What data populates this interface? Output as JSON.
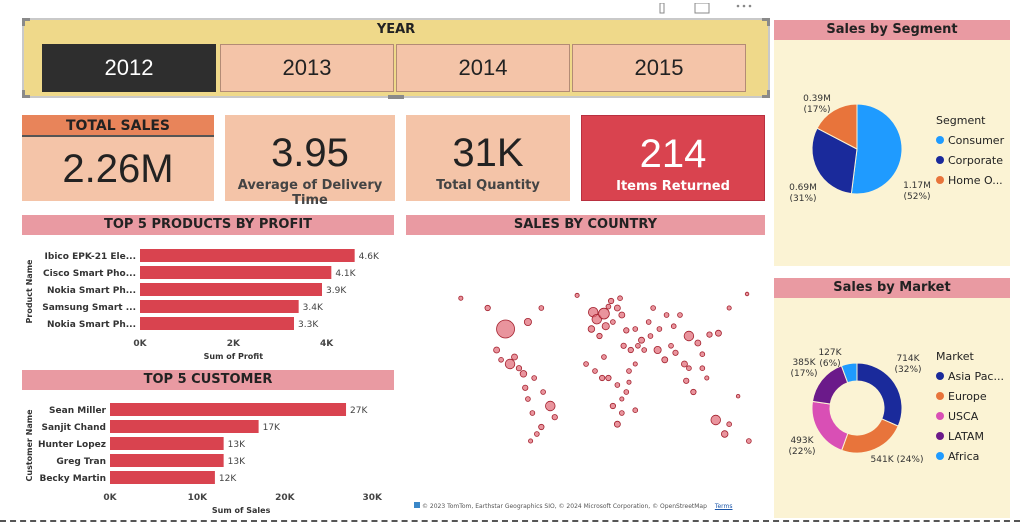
{
  "year_slicer": {
    "title": "YEAR",
    "years": [
      "2012",
      "2013",
      "2014",
      "2015"
    ],
    "selected": "2012"
  },
  "kpis": {
    "total_sales": {
      "title": "TOTAL SALES",
      "value": "2.26M"
    },
    "delivery": {
      "value": "3.95",
      "label": "Average of Delivery Time"
    },
    "quantity": {
      "value": "31K",
      "label": "Total Quantity"
    },
    "returned": {
      "value": "214",
      "label": "Items Returned"
    }
  },
  "sections": {
    "products_title": "TOP 5 PRODUCTS BY PROFIT",
    "customers_title": "TOP 5 CUSTOMER",
    "country_title": "SALES BY COUNTRY",
    "segment_title": "Sales by Segment",
    "market_title": "Sales by Market",
    "map_attribution": "© 2023 TomTom, Earthstar Geographics SIO, © 2024 Microsoft Corporation, © OpenStreetMap",
    "map_terms": "Terms"
  },
  "colors": {
    "bar": "#d9434f",
    "consumer": "#1f9bff",
    "corporate": "#1a2a9b",
    "home_office": "#e8743b",
    "asia_pacific": "#1a2a9b",
    "europe": "#e8743b",
    "usca": "#d94fb5",
    "latam": "#6b1a8a",
    "africa": "#1f9bff"
  },
  "chart_data": [
    {
      "id": "products",
      "type": "bar",
      "orientation": "horizontal",
      "categories": [
        "Ibico EPK-21 Ele...",
        "Cisco Smart Pho...",
        "Nokia Smart Ph...",
        "Samsung Smart ...",
        "Nokia Smart Ph..."
      ],
      "values": [
        4600,
        4100,
        3900,
        3400,
        3300
      ],
      "data_labels": [
        "4.6K",
        "4.1K",
        "3.9K",
        "3.4K",
        "3.3K"
      ],
      "xlabel": "Sum of Profit",
      "ylabel": "Product Name",
      "xlim": [
        0,
        4800
      ],
      "xticks": [
        0,
        2000,
        4000
      ],
      "xtick_labels": [
        "0K",
        "2K",
        "4K"
      ]
    },
    {
      "id": "customers",
      "type": "bar",
      "orientation": "horizontal",
      "categories": [
        "Sean Miller",
        "Sanjit Chand",
        "Hunter Lopez",
        "Greg Tran",
        "Becky Martin"
      ],
      "values": [
        27000,
        17000,
        13000,
        13000,
        12000
      ],
      "data_labels": [
        "27K",
        "17K",
        "13K",
        "13K",
        "12K"
      ],
      "xlabel": "Sum of Sales",
      "ylabel": "Customer Name",
      "xlim": [
        0,
        31000
      ],
      "xticks": [
        0,
        10000,
        20000,
        30000
      ],
      "xtick_labels": [
        "0K",
        "10K",
        "20K",
        "30K"
      ]
    },
    {
      "id": "segment",
      "type": "pie",
      "legend_title": "Segment",
      "categories": [
        "Consumer",
        "Corporate",
        "Home O..."
      ],
      "values": [
        1.17,
        0.69,
        0.39
      ],
      "value_labels": [
        "1.17M",
        "0.69M",
        "0.39M"
      ],
      "percent_labels": [
        "(52%)",
        "(31%)",
        "(17%)"
      ]
    },
    {
      "id": "market",
      "type": "pie",
      "donut": true,
      "legend_title": "Market",
      "categories": [
        "Asia Pac...",
        "Europe",
        "USCA",
        "LATAM",
        "Africa"
      ],
      "values": [
        714,
        541,
        493,
        385,
        127
      ],
      "value_labels": [
        "714K",
        "541K (24%)",
        "493K",
        "385K",
        "127K"
      ],
      "percent_labels": [
        "(32%)",
        "",
        "(22%)",
        "(17%)",
        "(6%)"
      ]
    },
    {
      "id": "country_map",
      "type": "scatter",
      "note_values": "bubble map of sales by country; bubbles = [longitude, latitude, relative size]",
      "points": [
        [
          -100,
          40,
          3
        ],
        [
          -95,
          15,
          1.6
        ],
        [
          -75,
          45,
          1.2
        ],
        [
          -120,
          55,
          0.9
        ],
        [
          -60,
          55,
          0.8
        ],
        [
          -110,
          25,
          1
        ],
        [
          -105,
          18,
          0.8
        ],
        [
          -90,
          20,
          1
        ],
        [
          -85,
          12,
          0.9
        ],
        [
          -80,
          8,
          1.1
        ],
        [
          -78,
          -2,
          0.9
        ],
        [
          -75,
          -10,
          0.8
        ],
        [
          -70,
          -20,
          0.8
        ],
        [
          -60,
          -30,
          0.9
        ],
        [
          -50,
          -15,
          1.6
        ],
        [
          -65,
          -35,
          0.8
        ],
        [
          -72,
          -40,
          0.7
        ],
        [
          -58,
          -5,
          0.8
        ],
        [
          -45,
          -23,
          0.9
        ],
        [
          -68,
          5,
          0.8
        ],
        [
          -2,
          52,
          1.6
        ],
        [
          2,
          47,
          1.6
        ],
        [
          10,
          51,
          1.8
        ],
        [
          12,
          42,
          1.2
        ],
        [
          -4,
          40,
          1.1
        ],
        [
          18,
          60,
          0.9
        ],
        [
          25,
          55,
          1
        ],
        [
          30,
          50,
          1
        ],
        [
          20,
          45,
          0.8
        ],
        [
          15,
          56,
          0.8
        ],
        [
          35,
          39,
          0.9
        ],
        [
          45,
          40,
          0.8
        ],
        [
          40,
          25,
          0.9
        ],
        [
          52,
          32,
          1
        ],
        [
          60,
          45,
          0.8
        ],
        [
          5,
          35,
          0.9
        ],
        [
          10,
          20,
          0.8
        ],
        [
          0,
          10,
          0.8
        ],
        [
          15,
          5,
          0.9
        ],
        [
          25,
          0,
          0.8
        ],
        [
          35,
          -5,
          0.8
        ],
        [
          20,
          -15,
          0.9
        ],
        [
          25,
          -28,
          1
        ],
        [
          30,
          -20,
          0.8
        ],
        [
          45,
          -18,
          0.8
        ],
        [
          -10,
          15,
          0.8
        ],
        [
          8,
          5,
          0.9
        ],
        [
          38,
          10,
          0.8
        ],
        [
          32,
          28,
          0.9
        ],
        [
          48,
          28,
          0.8
        ],
        [
          70,
          25,
          1.2
        ],
        [
          78,
          18,
          1
        ],
        [
          85,
          28,
          0.8
        ],
        [
          90,
          23,
          0.9
        ],
        [
          100,
          15,
          1
        ],
        [
          105,
          35,
          1.6
        ],
        [
          115,
          30,
          1
        ],
        [
          120,
          22,
          0.8
        ],
        [
          128,
          36,
          0.9
        ],
        [
          138,
          37,
          1
        ],
        [
          105,
          12,
          0.8
        ],
        [
          102,
          3,
          0.9
        ],
        [
          110,
          -5,
          0.9
        ],
        [
          120,
          12,
          0.8
        ],
        [
          125,
          5,
          0.7
        ],
        [
          135,
          -25,
          1.6
        ],
        [
          145,
          -35,
          1.1
        ],
        [
          150,
          -28,
          0.8
        ],
        [
          172,
          -40,
          0.8
        ],
        [
          160,
          -8,
          0.6
        ],
        [
          65,
          55,
          0.8
        ],
        [
          80,
          50,
          0.8
        ],
        [
          95,
          50,
          0.8
        ],
        [
          55,
          25,
          0.8
        ],
        [
          62,
          35,
          0.8
        ],
        [
          150,
          55,
          0.7
        ],
        [
          170,
          65,
          0.6
        ],
        [
          -150,
          62,
          0.7
        ],
        [
          28,
          62,
          0.8
        ],
        [
          -20,
          64,
          0.7
        ],
        [
          72,
          40,
          0.8
        ],
        [
          88,
          42,
          0.8
        ],
        [
          45,
          15,
          0.7
        ],
        [
          38,
          2,
          0.7
        ],
        [
          30,
          -10,
          0.7
        ]
      ]
    }
  ]
}
